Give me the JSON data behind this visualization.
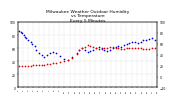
{
  "title": "Milwaukee Weather Outdoor Humidity\nvs Temperature\nEvery 5 Minutes",
  "title_fontsize": 3.2,
  "background_color": "#ffffff",
  "grid_color": "#bbbbbb",
  "blue_color": "#0000dd",
  "red_color": "#dd0000",
  "ylim_left": [
    0,
    100
  ],
  "ylim_right": [
    -20,
    100
  ],
  "blue_x": [
    0.01,
    0.02,
    0.03,
    0.04,
    0.05,
    0.06,
    0.07,
    0.09,
    0.1,
    0.12,
    0.13,
    0.15,
    0.17,
    0.19,
    0.21,
    0.23,
    0.25,
    0.27,
    0.3,
    0.33,
    0.36,
    0.39,
    0.42,
    0.44,
    0.46,
    0.48,
    0.5,
    0.52,
    0.54,
    0.56,
    0.58,
    0.6,
    0.62,
    0.64,
    0.66,
    0.68,
    0.7,
    0.72,
    0.74,
    0.76,
    0.78,
    0.8,
    0.82,
    0.84,
    0.86,
    0.88,
    0.9,
    0.92,
    0.94,
    0.96,
    0.98
  ],
  "blue_y": [
    87,
    85,
    83,
    80,
    78,
    75,
    72,
    70,
    67,
    63,
    58,
    53,
    50,
    47,
    50,
    53,
    55,
    52,
    48,
    44,
    42,
    46,
    52,
    57,
    60,
    58,
    55,
    56,
    58,
    60,
    62,
    60,
    58,
    56,
    58,
    60,
    62,
    63,
    62,
    65,
    67,
    68,
    70,
    70,
    68,
    70,
    72,
    73,
    74,
    75,
    73
  ],
  "red_x": [
    0.01,
    0.03,
    0.05,
    0.07,
    0.09,
    0.11,
    0.13,
    0.15,
    0.17,
    0.19,
    0.21,
    0.23,
    0.25,
    0.27,
    0.3,
    0.33,
    0.36,
    0.39,
    0.42,
    0.44,
    0.46,
    0.48,
    0.5,
    0.52,
    0.54,
    0.56,
    0.58,
    0.6,
    0.62,
    0.64,
    0.66,
    0.68,
    0.7,
    0.72,
    0.74,
    0.76,
    0.78,
    0.8,
    0.82,
    0.84,
    0.86,
    0.88,
    0.9,
    0.92,
    0.94,
    0.96,
    0.98
  ],
  "red_y": [
    20,
    20,
    20,
    20,
    20,
    22,
    22,
    22,
    22,
    22,
    24,
    24,
    25,
    25,
    26,
    28,
    30,
    35,
    42,
    48,
    52,
    55,
    58,
    57,
    55,
    52,
    50,
    50,
    52,
    53,
    54,
    54,
    53,
    52,
    50,
    50,
    52,
    52,
    53,
    53,
    52,
    52,
    51,
    50,
    50,
    52,
    53
  ],
  "yticks_left": [
    0,
    20,
    40,
    60,
    80,
    100
  ],
  "yticks_right": [
    -20,
    0,
    20,
    40,
    60,
    80,
    100
  ],
  "n_xticks": 28,
  "dot_size": 1.5
}
